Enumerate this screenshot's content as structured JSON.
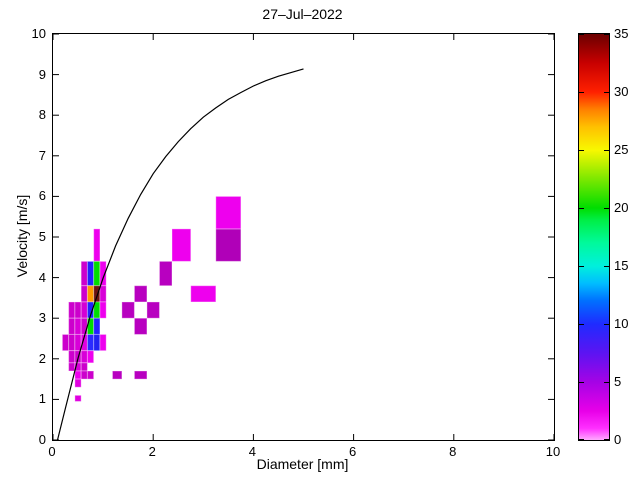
{
  "figure": {
    "background": "#ffffff"
  },
  "chart_data": {
    "type": "heatmap",
    "title": "27–Jul–2022",
    "xlabel": "Diameter [mm]",
    "ylabel": "Velocity [m/s]",
    "xlim": [
      0,
      10
    ],
    "ylim": [
      0,
      10
    ],
    "x_ticks": [
      0,
      2,
      4,
      6,
      8,
      10
    ],
    "y_ticks": [
      0,
      1,
      2,
      3,
      4,
      5,
      6,
      7,
      8,
      9,
      10
    ],
    "grid": "off",
    "colorbar": {
      "min": 0,
      "max": 35,
      "ticks": [
        0,
        5,
        10,
        15,
        20,
        25,
        30,
        35
      ],
      "stops": [
        {
          "v": 0,
          "c": "#ffaaff"
        },
        {
          "v": 1,
          "c": "#ff30ff"
        },
        {
          "v": 2.5,
          "c": "#e800e8"
        },
        {
          "v": 5,
          "c": "#a503e5"
        },
        {
          "v": 7.5,
          "c": "#5c14f2"
        },
        {
          "v": 10,
          "c": "#1f2bff"
        },
        {
          "v": 12,
          "c": "#0070ff"
        },
        {
          "v": 13.5,
          "c": "#00bdff"
        },
        {
          "v": 15,
          "c": "#00f0dc"
        },
        {
          "v": 17,
          "c": "#00fa9b"
        },
        {
          "v": 19,
          "c": "#00ee44"
        },
        {
          "v": 20,
          "c": "#00dd00"
        },
        {
          "v": 22.5,
          "c": "#7ce800"
        },
        {
          "v": 25,
          "c": "#f8f800"
        },
        {
          "v": 27,
          "c": "#ffc000"
        },
        {
          "v": 28.5,
          "c": "#ff8000"
        },
        {
          "v": 30,
          "c": "#ff2000"
        },
        {
          "v": 32.5,
          "c": "#c80000"
        },
        {
          "v": 35,
          "c": "#6b0000"
        }
      ]
    },
    "cells": [
      {
        "d": [
          0.812,
          0.937
        ],
        "v": [
          4.4,
          5.2
        ],
        "count": 1,
        "color": "#ee00ee"
      },
      {
        "d": [
          2.375,
          2.75
        ],
        "v": [
          4.4,
          5.2
        ],
        "count": 1,
        "color": "#ee00ee"
      },
      {
        "d": [
          3.25,
          3.75
        ],
        "v": [
          4.4,
          5.2
        ],
        "count": 3,
        "color": "#b000b8"
      },
      {
        "d": [
          3.25,
          3.75
        ],
        "v": [
          5.2,
          6.0
        ],
        "count": 1,
        "color": "#ee00ee"
      },
      {
        "d": [
          0.562,
          0.687
        ],
        "v": [
          3.8,
          4.4
        ],
        "count": 2,
        "color": "#cc00cc"
      },
      {
        "d": [
          0.687,
          0.812
        ],
        "v": [
          3.8,
          4.4
        ],
        "count": 9,
        "color": "#2222ff"
      },
      {
        "d": [
          0.812,
          0.937
        ],
        "v": [
          3.8,
          4.4
        ],
        "count": 20,
        "color": "#00dd00"
      },
      {
        "d": [
          0.937,
          1.062
        ],
        "v": [
          3.8,
          4.4
        ],
        "count": 1,
        "color": "#ee00ee"
      },
      {
        "d": [
          2.125,
          2.375
        ],
        "v": [
          3.8,
          4.4
        ],
        "count": 3,
        "color": "#b800c0"
      },
      {
        "d": [
          0.562,
          0.687
        ],
        "v": [
          3.4,
          3.8
        ],
        "count": 2,
        "color": "#cc00cc"
      },
      {
        "d": [
          0.687,
          0.812
        ],
        "v": [
          3.4,
          3.8
        ],
        "count": 26,
        "color": "#ff9900"
      },
      {
        "d": [
          0.812,
          0.937
        ],
        "v": [
          3.4,
          3.8
        ],
        "count": 34,
        "color": "#6b1212"
      },
      {
        "d": [
          0.937,
          1.062
        ],
        "v": [
          3.4,
          3.8
        ],
        "count": 2,
        "color": "#d800d8"
      },
      {
        "d": [
          1.625,
          1.875
        ],
        "v": [
          3.4,
          3.8
        ],
        "count": 3,
        "color": "#b800c0"
      },
      {
        "d": [
          2.75,
          3.25
        ],
        "v": [
          3.4,
          3.8
        ],
        "count": 1,
        "color": "#ee00ee"
      },
      {
        "d": [
          0.312,
          0.437
        ],
        "v": [
          3.0,
          3.4
        ],
        "count": 2,
        "color": "#cc00cc"
      },
      {
        "d": [
          0.437,
          0.562
        ],
        "v": [
          3.0,
          3.4
        ],
        "count": 2,
        "color": "#cc00cc"
      },
      {
        "d": [
          0.562,
          0.687
        ],
        "v": [
          3.0,
          3.4
        ],
        "count": 2,
        "color": "#d400d4"
      },
      {
        "d": [
          0.687,
          0.812
        ],
        "v": [
          3.0,
          3.4
        ],
        "count": 9,
        "color": "#2222ff"
      },
      {
        "d": [
          0.812,
          0.937
        ],
        "v": [
          3.0,
          3.4
        ],
        "count": 20,
        "color": "#00dd00"
      },
      {
        "d": [
          0.937,
          1.062
        ],
        "v": [
          3.0,
          3.4
        ],
        "count": 1,
        "color": "#ee00ee"
      },
      {
        "d": [
          1.375,
          1.625
        ],
        "v": [
          3.0,
          3.4
        ],
        "count": 3,
        "color": "#b800c0"
      },
      {
        "d": [
          1.875,
          2.125
        ],
        "v": [
          3.0,
          3.4
        ],
        "count": 3,
        "color": "#b800c0"
      },
      {
        "d": [
          0.312,
          0.437
        ],
        "v": [
          2.6,
          3.0
        ],
        "count": 2,
        "color": "#cc00cc"
      },
      {
        "d": [
          0.437,
          0.562
        ],
        "v": [
          2.6,
          3.0
        ],
        "count": 2,
        "color": "#d800d8"
      },
      {
        "d": [
          0.562,
          0.687
        ],
        "v": [
          2.6,
          3.0
        ],
        "count": 2,
        "color": "#cc00cc"
      },
      {
        "d": [
          0.687,
          0.812
        ],
        "v": [
          2.6,
          3.0
        ],
        "count": 20,
        "color": "#00dd00"
      },
      {
        "d": [
          0.812,
          0.937
        ],
        "v": [
          2.6,
          3.0
        ],
        "count": 9,
        "color": "#2222ff"
      },
      {
        "d": [
          1.625,
          1.875
        ],
        "v": [
          2.6,
          3.0
        ],
        "count": 3,
        "color": "#b800c0"
      },
      {
        "d": [
          0.187,
          0.312
        ],
        "v": [
          2.2,
          2.6
        ],
        "count": 2,
        "color": "#cc00cc"
      },
      {
        "d": [
          0.312,
          0.437
        ],
        "v": [
          2.2,
          2.6
        ],
        "count": 2,
        "color": "#cc00cc"
      },
      {
        "d": [
          0.437,
          0.562
        ],
        "v": [
          2.2,
          2.6
        ],
        "count": 2,
        "color": "#d800d8"
      },
      {
        "d": [
          0.562,
          0.687
        ],
        "v": [
          2.2,
          2.6
        ],
        "count": 2,
        "color": "#e000e0"
      },
      {
        "d": [
          0.687,
          0.812
        ],
        "v": [
          2.2,
          2.6
        ],
        "count": 8,
        "color": "#2a2aff"
      },
      {
        "d": [
          0.812,
          0.937
        ],
        "v": [
          2.2,
          2.6
        ],
        "count": 9,
        "color": "#2222f2"
      },
      {
        "d": [
          0.937,
          1.062
        ],
        "v": [
          2.2,
          2.6
        ],
        "count": 1,
        "color": "#ee00ee"
      },
      {
        "d": [
          0.312,
          0.437
        ],
        "v": [
          1.9,
          2.2
        ],
        "count": 2,
        "color": "#cc00cc"
      },
      {
        "d": [
          0.437,
          0.562
        ],
        "v": [
          1.9,
          2.2
        ],
        "count": 2,
        "color": "#cc00cc"
      },
      {
        "d": [
          0.562,
          0.687
        ],
        "v": [
          1.9,
          2.2
        ],
        "count": 2,
        "color": "#d800d8"
      },
      {
        "d": [
          0.687,
          0.812
        ],
        "v": [
          1.9,
          2.2
        ],
        "count": 1,
        "color": "#ee00ee"
      },
      {
        "d": [
          0.312,
          0.437
        ],
        "v": [
          1.7,
          1.9
        ],
        "count": 2,
        "color": "#cc00cc"
      },
      {
        "d": [
          0.437,
          0.562
        ],
        "v": [
          1.7,
          1.9
        ],
        "count": 2,
        "color": "#d800d8"
      },
      {
        "d": [
          0.562,
          0.687
        ],
        "v": [
          1.7,
          1.9
        ],
        "count": 2,
        "color": "#cc00cc"
      },
      {
        "d": [
          0.437,
          0.562
        ],
        "v": [
          1.5,
          1.7
        ],
        "count": 1,
        "color": "#ee00ee"
      },
      {
        "d": [
          0.562,
          0.687
        ],
        "v": [
          1.5,
          1.7
        ],
        "count": 2,
        "color": "#cc00cc"
      },
      {
        "d": [
          0.687,
          0.812
        ],
        "v": [
          1.5,
          1.7
        ],
        "count": 2,
        "color": "#cc00cc"
      },
      {
        "d": [
          1.187,
          1.375
        ],
        "v": [
          1.5,
          1.7
        ],
        "count": 3,
        "color": "#b800c0"
      },
      {
        "d": [
          1.625,
          1.875
        ],
        "v": [
          1.5,
          1.7
        ],
        "count": 3,
        "color": "#b800c0"
      },
      {
        "d": [
          0.437,
          0.562
        ],
        "v": [
          1.3,
          1.5
        ],
        "count": 2,
        "color": "#e000e0"
      },
      {
        "d": [
          0.437,
          0.562
        ],
        "v": [
          0.95,
          1.1
        ],
        "count": 2,
        "color": "#e000e0"
      }
    ],
    "curve": {
      "name": "terminal-velocity-curve",
      "color": "#000000",
      "points": [
        [
          0.09,
          0.0
        ],
        [
          0.25,
          0.79
        ],
        [
          0.5,
          2.02
        ],
        [
          0.75,
          3.08
        ],
        [
          1.0,
          3.99
        ],
        [
          1.25,
          4.78
        ],
        [
          1.5,
          5.46
        ],
        [
          1.75,
          6.05
        ],
        [
          2.0,
          6.56
        ],
        [
          2.25,
          6.98
        ],
        [
          2.5,
          7.35
        ],
        [
          2.75,
          7.67
        ],
        [
          3.0,
          7.95
        ],
        [
          3.25,
          8.18
        ],
        [
          3.5,
          8.39
        ],
        [
          3.75,
          8.56
        ],
        [
          4.0,
          8.72
        ],
        [
          4.25,
          8.85
        ],
        [
          4.5,
          8.96
        ],
        [
          4.75,
          9.05
        ],
        [
          5.0,
          9.14
        ]
      ]
    }
  }
}
